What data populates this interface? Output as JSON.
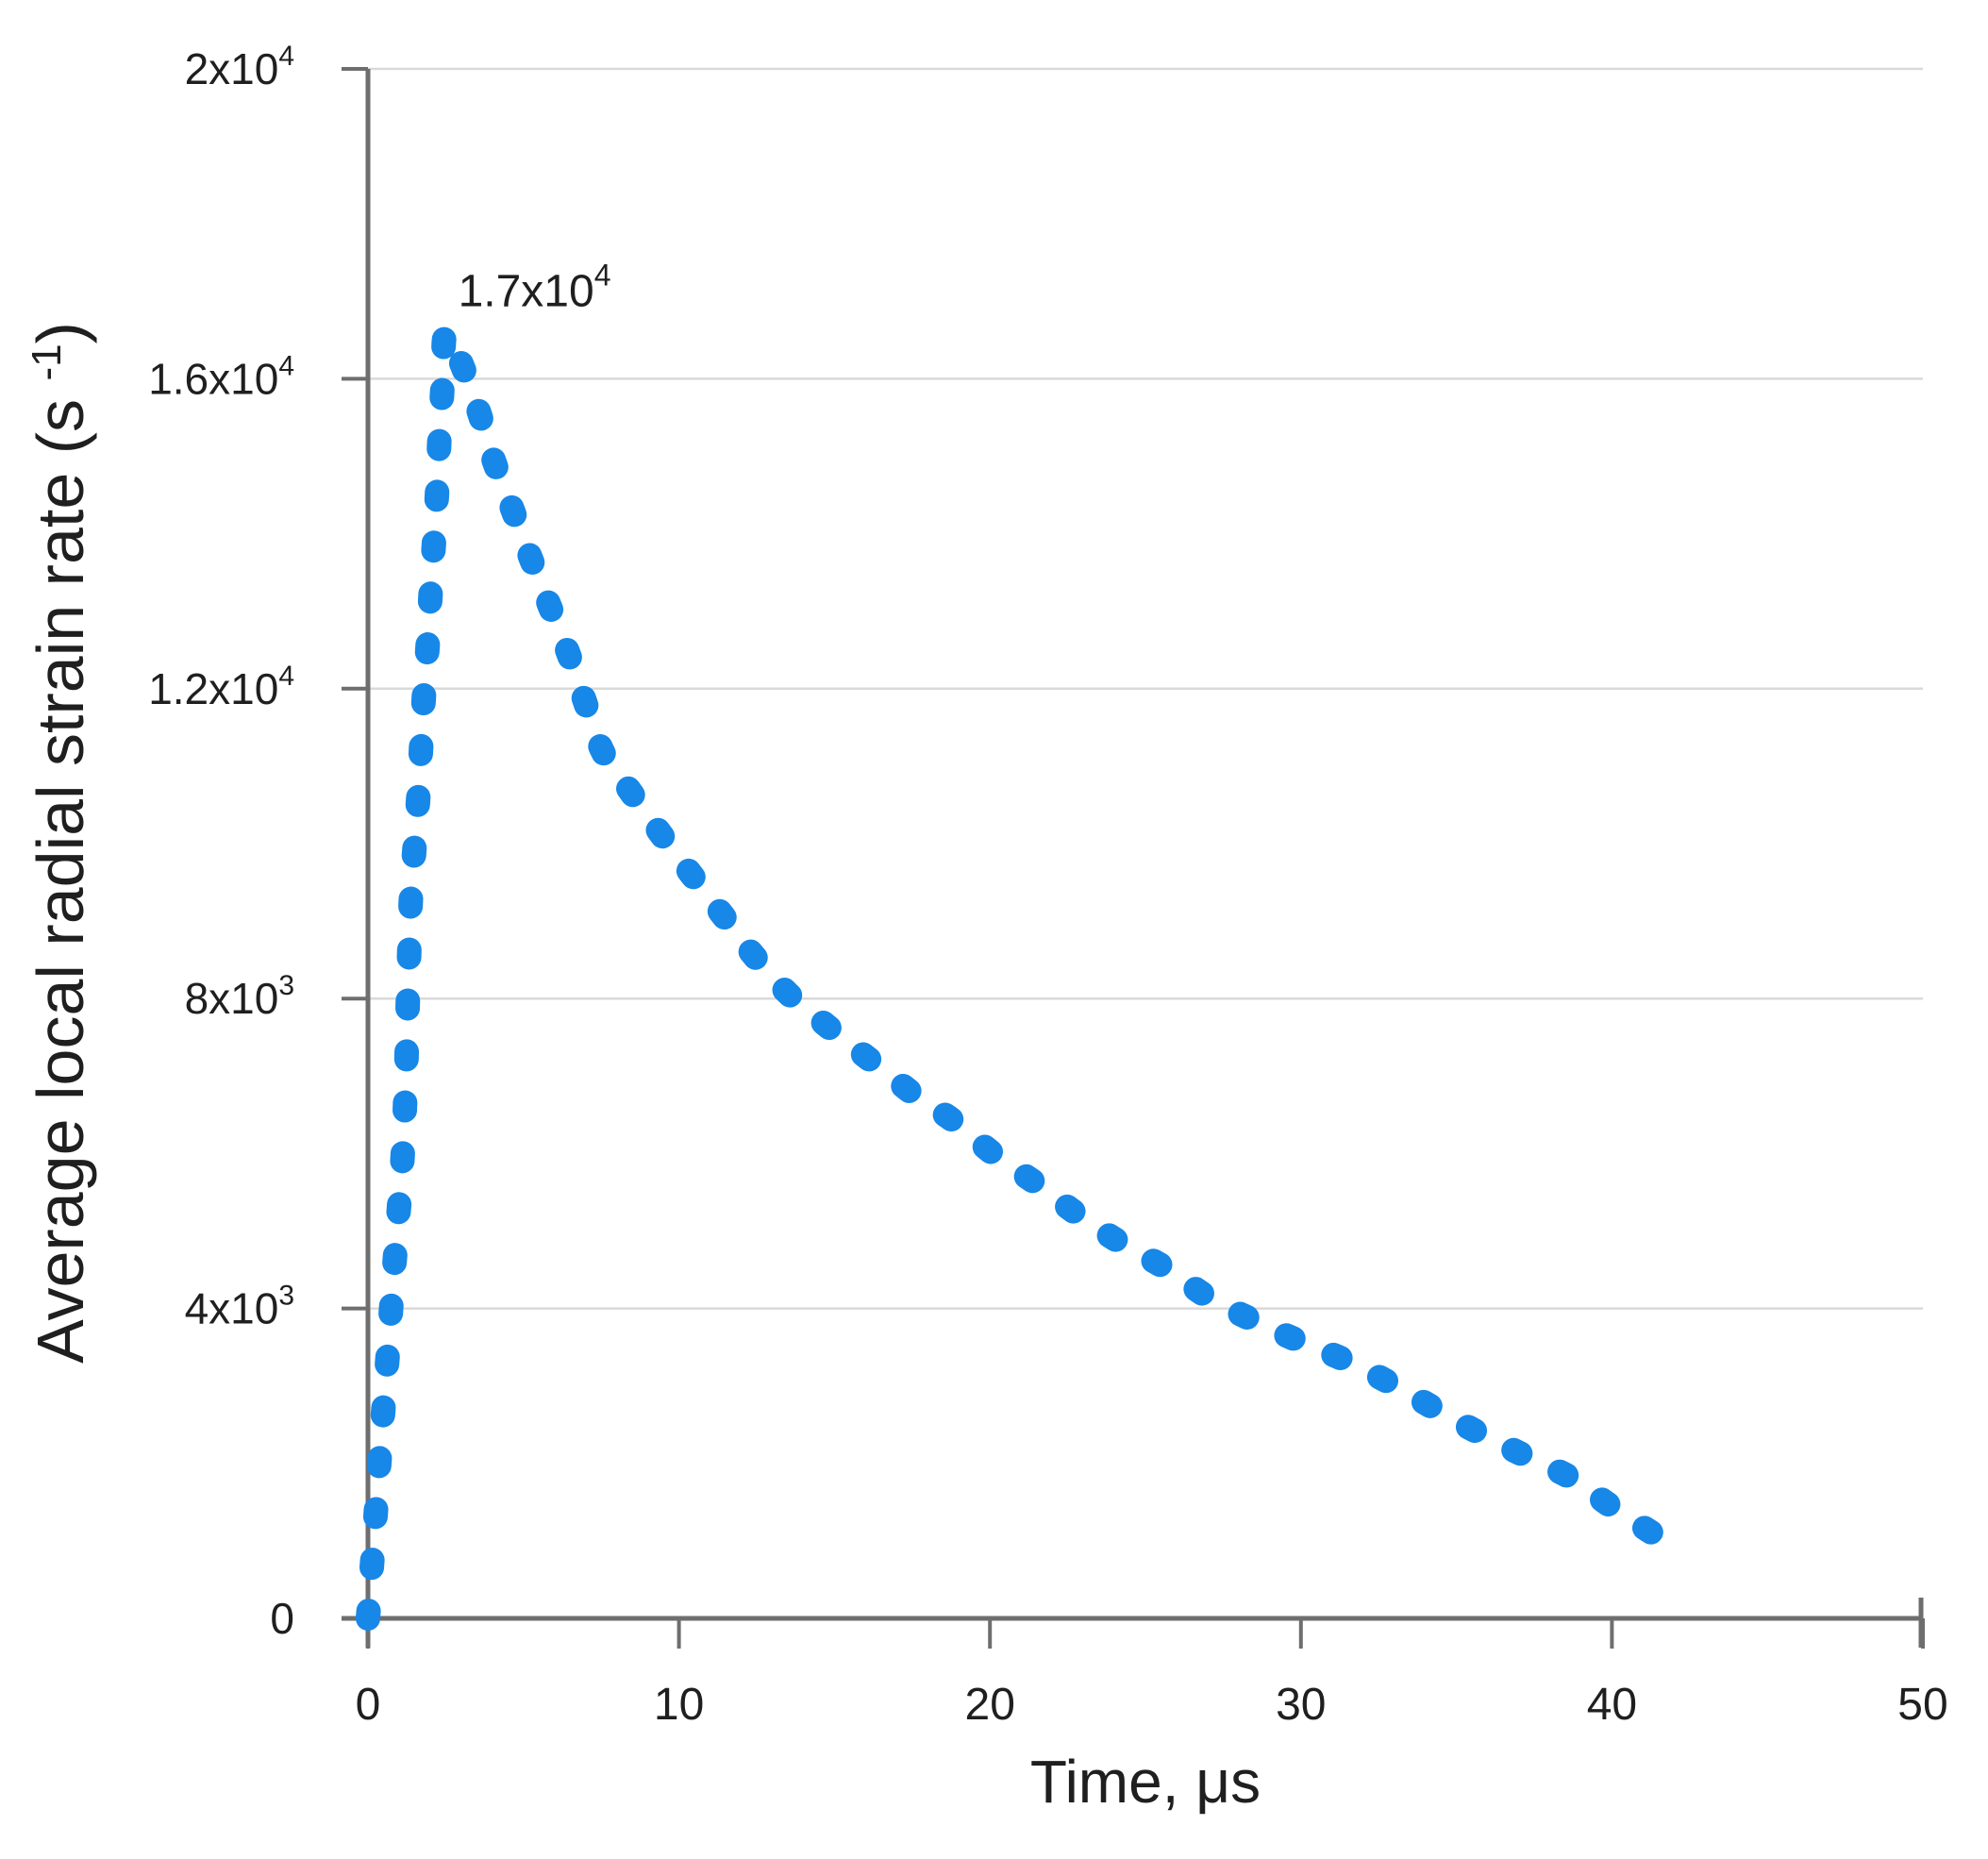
{
  "colors": {
    "background": "#ffffff",
    "axis": "#6e6e6e",
    "grid": "#d9d9d9",
    "text": "#1f1f1f",
    "series_blue": "#1787e8"
  },
  "chart_data": {
    "type": "line",
    "style": "dotted",
    "title": "",
    "xlabel": "Time, μs",
    "ylabel_parts": {
      "prefix": "Average local radial strain rate (s ",
      "sup": "-1",
      "suffix": ")"
    },
    "xlim": [
      0,
      50
    ],
    "ylim": [
      0,
      20000
    ],
    "grid": true,
    "legend": false,
    "x_ticks": [
      {
        "v": 0,
        "label": "0"
      },
      {
        "v": 10,
        "label": "10"
      },
      {
        "v": 20,
        "label": "20"
      },
      {
        "v": 30,
        "label": "30"
      },
      {
        "v": 40,
        "label": "40"
      },
      {
        "v": 50,
        "label": "50"
      }
    ],
    "y_ticks": [
      {
        "v": 0,
        "base": "0",
        "exp": ""
      },
      {
        "v": 4000,
        "base": "4x10",
        "exp": "3"
      },
      {
        "v": 8000,
        "base": "8x10",
        "exp": "3"
      },
      {
        "v": 12000,
        "base": "1.2x10",
        "exp": "4"
      },
      {
        "v": 16000,
        "base": "1.6x10",
        "exp": "4"
      },
      {
        "v": 20000,
        "base": "2x10",
        "exp": "4"
      }
    ],
    "annotation": {
      "base": "1.7x10",
      "exp": "4",
      "x": 2.9,
      "y": 17400
    },
    "series": [
      {
        "name": "average local radial strain rate",
        "color": "#1787e8",
        "peak_value": 16600,
        "points": [
          [
            0,
            0
          ],
          [
            0.12,
            650
          ],
          [
            0.24,
            1300
          ],
          [
            0.36,
            1980
          ],
          [
            0.48,
            2620
          ],
          [
            0.61,
            3270
          ],
          [
            0.73,
            3930
          ],
          [
            0.85,
            4570
          ],
          [
            0.98,
            5220
          ],
          [
            1.1,
            5880
          ],
          [
            1.18,
            6520
          ],
          [
            1.24,
            7250
          ],
          [
            1.28,
            7950
          ],
          [
            1.33,
            8630
          ],
          [
            1.38,
            9290
          ],
          [
            1.5,
            9960
          ],
          [
            1.62,
            10610
          ],
          [
            1.71,
            11260
          ],
          [
            1.8,
            11910
          ],
          [
            1.93,
            12620
          ],
          [
            2.02,
            13270
          ],
          [
            2.13,
            13940
          ],
          [
            2.23,
            14600
          ],
          [
            2.3,
            15240
          ],
          [
            2.4,
            15920
          ],
          [
            2.5,
            16600
          ],
          [
            3.0,
            16200
          ],
          [
            3.57,
            15570
          ],
          [
            4.05,
            14940
          ],
          [
            4.66,
            14300
          ],
          [
            5.24,
            13680
          ],
          [
            5.8,
            13110
          ],
          [
            6.46,
            12440
          ],
          [
            6.98,
            11830
          ],
          [
            7.56,
            11180
          ],
          [
            8.48,
            10650
          ],
          [
            9.48,
            10090
          ],
          [
            10.46,
            9570
          ],
          [
            11.46,
            9050
          ],
          [
            12.44,
            8540
          ],
          [
            13.5,
            8070
          ],
          [
            14.57,
            7710
          ],
          [
            15.6,
            7380
          ],
          [
            16.65,
            7050
          ],
          [
            17.7,
            6720
          ],
          [
            18.8,
            6430
          ],
          [
            20.1,
            6000
          ],
          [
            21.5,
            5610
          ],
          [
            22.8,
            5220
          ],
          [
            24.2,
            4850
          ],
          [
            25.7,
            4510
          ],
          [
            27.0,
            4150
          ],
          [
            28.5,
            3840
          ],
          [
            30.0,
            3570
          ],
          [
            31.5,
            3320
          ],
          [
            33.0,
            3010
          ],
          [
            34.3,
            2710
          ],
          [
            35.7,
            2400
          ],
          [
            37.2,
            2100
          ],
          [
            38.7,
            1810
          ],
          [
            40.0,
            1440
          ],
          [
            41.5,
            1050
          ]
        ]
      }
    ]
  }
}
